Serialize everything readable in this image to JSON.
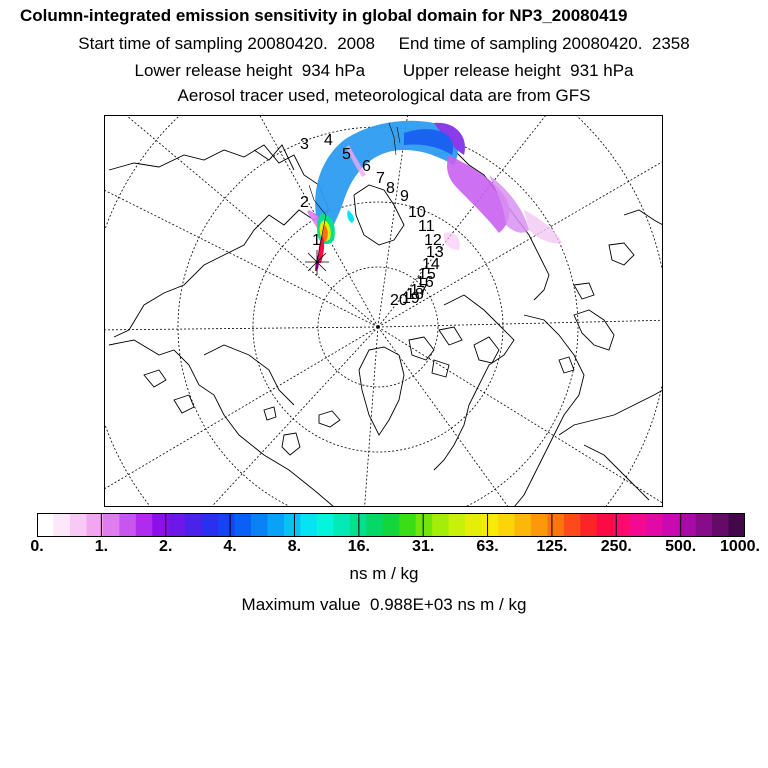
{
  "title": {
    "line1": "Column-integrated emission sensitivity in global domain for NP3_20080419",
    "line2": "Start time of sampling 20080420.  2008     End time of sampling 20080420.  2358",
    "line3": "Lower release height  934 hPa        Upper release height  931 hPa",
    "line4": "Aerosol tracer used, meteorological data are from GFS"
  },
  "map": {
    "projection": "polar-stereographic",
    "release_site_marker": "star",
    "day_labels": [
      "1",
      "2",
      "3",
      "4",
      "5",
      "6",
      "7",
      "8",
      "9",
      "10",
      "11",
      "12",
      "13",
      "14",
      "15",
      "16",
      "17",
      "18",
      "19",
      "20"
    ]
  },
  "colorbar": {
    "tick_labels": [
      "0.",
      "1.",
      "2.",
      "4.",
      "8.",
      "16.",
      "31.",
      "63.",
      "125.",
      "250.",
      "500.",
      "1000."
    ],
    "colors": [
      "#ffffff",
      "#fde8fb",
      "#f9c9f6",
      "#f3a6f0",
      "#de7cf0",
      "#c856ee",
      "#b02cec",
      "#8e10e8",
      "#6c18e8",
      "#4a22ea",
      "#2a30f0",
      "#1444f4",
      "#0a60f4",
      "#0a82f6",
      "#0aa2f6",
      "#08c2f6",
      "#06e4f4",
      "#04f4dc",
      "#04eab6",
      "#04e08e",
      "#06d866",
      "#12d63c",
      "#3ade16",
      "#70e60a",
      "#a2ee08",
      "#c8f008",
      "#e4ee08",
      "#f8ea08",
      "#fcd408",
      "#fcb808",
      "#fc980a",
      "#fc7410",
      "#fc4a1a",
      "#fc2426",
      "#fc0a44",
      "#fc0a6e",
      "#f40a92",
      "#e20aa6",
      "#c80ab0",
      "#a80ca4",
      "#860c8a",
      "#660a6a",
      "#44084a"
    ]
  },
  "units": "ns m / kg",
  "max_value_text": "Maximum value  0.988E+03 ns m / kg"
}
